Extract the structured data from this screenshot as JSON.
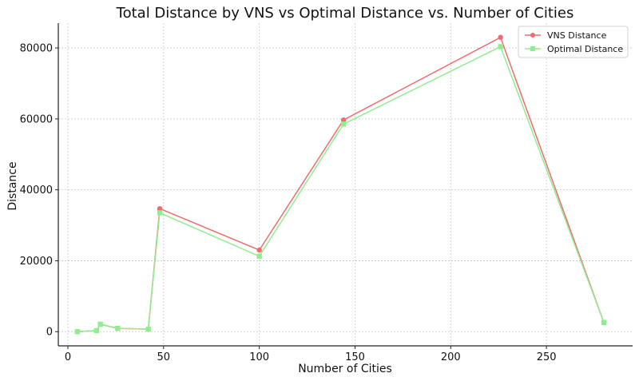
{
  "chart_data": {
    "type": "line",
    "title": "Total Distance by VNS vs Optimal Distance vs. Number of Cities",
    "xlabel": "Number of Cities",
    "ylabel": "Distance",
    "xlim": [
      -5,
      295
    ],
    "ylim": [
      -4000,
      87000
    ],
    "xticks": [
      0,
      50,
      100,
      150,
      200,
      250
    ],
    "yticks": [
      0,
      20000,
      40000,
      60000,
      80000
    ],
    "grid": true,
    "legend_position": "top-right",
    "x": [
      5,
      15,
      17,
      26,
      42,
      48,
      100,
      144,
      226,
      280
    ],
    "series": [
      {
        "name": "VNS Distance",
        "color": "#ee6b6e",
        "marker": "circle",
        "values": [
          19,
          291,
          2085,
          937,
          699,
          34700,
          23000,
          59700,
          83000,
          2600
        ]
      },
      {
        "name": "Optimal Distance",
        "color": "#90ee90",
        "marker": "square",
        "values": [
          19,
          291,
          2085,
          937,
          699,
          33523,
          21282,
          58537,
          80369,
          2579
        ]
      }
    ]
  }
}
